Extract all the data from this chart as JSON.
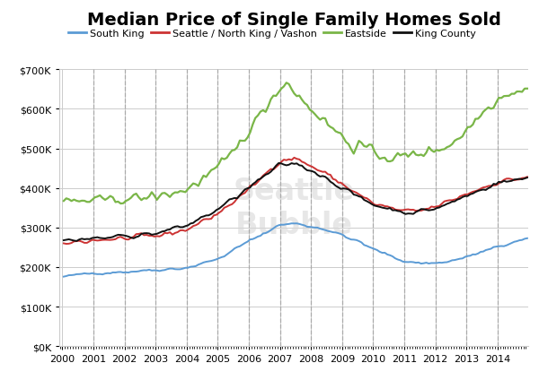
{
  "title": "Median Price of Single Family Homes Sold",
  "background_color": "#ffffff",
  "grid_color": "#cccccc",
  "ylim": [
    0,
    700000
  ],
  "yticks": [
    0,
    100000,
    200000,
    300000,
    400000,
    500000,
    600000,
    700000
  ],
  "xlim_start": 1999.9,
  "xlim_end": 2014.99,
  "xticks": [
    2000,
    2001,
    2002,
    2003,
    2004,
    2005,
    2006,
    2007,
    2008,
    2009,
    2010,
    2011,
    2012,
    2013,
    2014
  ],
  "vline_years": [
    2001,
    2002,
    2003,
    2004,
    2005,
    2006,
    2007,
    2008,
    2009,
    2010,
    2011,
    2012,
    2013,
    2014
  ],
  "series": {
    "south_king": {
      "label": "South King",
      "color": "#5b9bd5",
      "linewidth": 1.4
    },
    "seattle_north": {
      "label": "Seattle / North King / Vashon",
      "color": "#cc3333",
      "linewidth": 1.4
    },
    "eastside": {
      "label": "Eastside",
      "color": "#7ab648",
      "linewidth": 1.6
    },
    "king_county": {
      "label": "King County",
      "color": "#111111",
      "linewidth": 1.4
    }
  }
}
